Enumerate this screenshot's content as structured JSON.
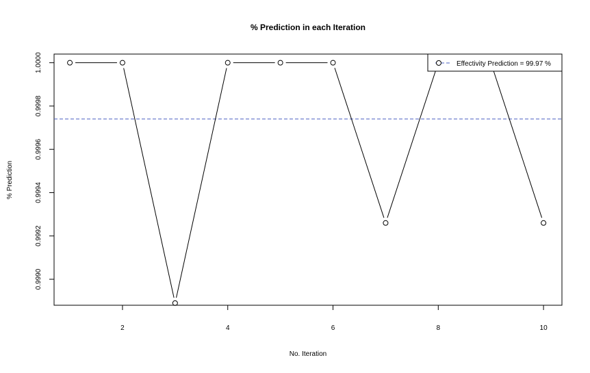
{
  "chart_data": {
    "type": "line",
    "title": "% Prediction in each Iteration",
    "xlabel": "No. Iteration",
    "ylabel": "% Prediction",
    "x": [
      1,
      2,
      3,
      4,
      5,
      6,
      7,
      8,
      9,
      10
    ],
    "series": [
      {
        "values": [
          1.0,
          1.0,
          0.99889,
          1.0,
          1.0,
          1.0,
          0.99926,
          1.0,
          1.0,
          0.99926
        ],
        "color": "#000000",
        "marker": "open-circle"
      }
    ],
    "reference_line": {
      "y": 0.99974,
      "color": "#4a5fc1",
      "style": "dashed"
    },
    "legend": {
      "label": "Effectivity Prediction = 99.97 %",
      "placement": "top-right"
    },
    "xlim": [
      0.7,
      10.35
    ],
    "ylim": [
      0.99888,
      1.00004
    ],
    "xticks": [
      "2",
      "4",
      "6",
      "8",
      "10"
    ],
    "xtick_values": [
      2,
      4,
      6,
      8,
      10
    ],
    "yticks": [
      "0.9990",
      "0.9992",
      "0.9994",
      "0.9996",
      "0.9998",
      "1.0000"
    ],
    "ytick_values": [
      0.999,
      0.9992,
      0.9994,
      0.9996,
      0.9998,
      1.0
    ],
    "grid": false
  }
}
